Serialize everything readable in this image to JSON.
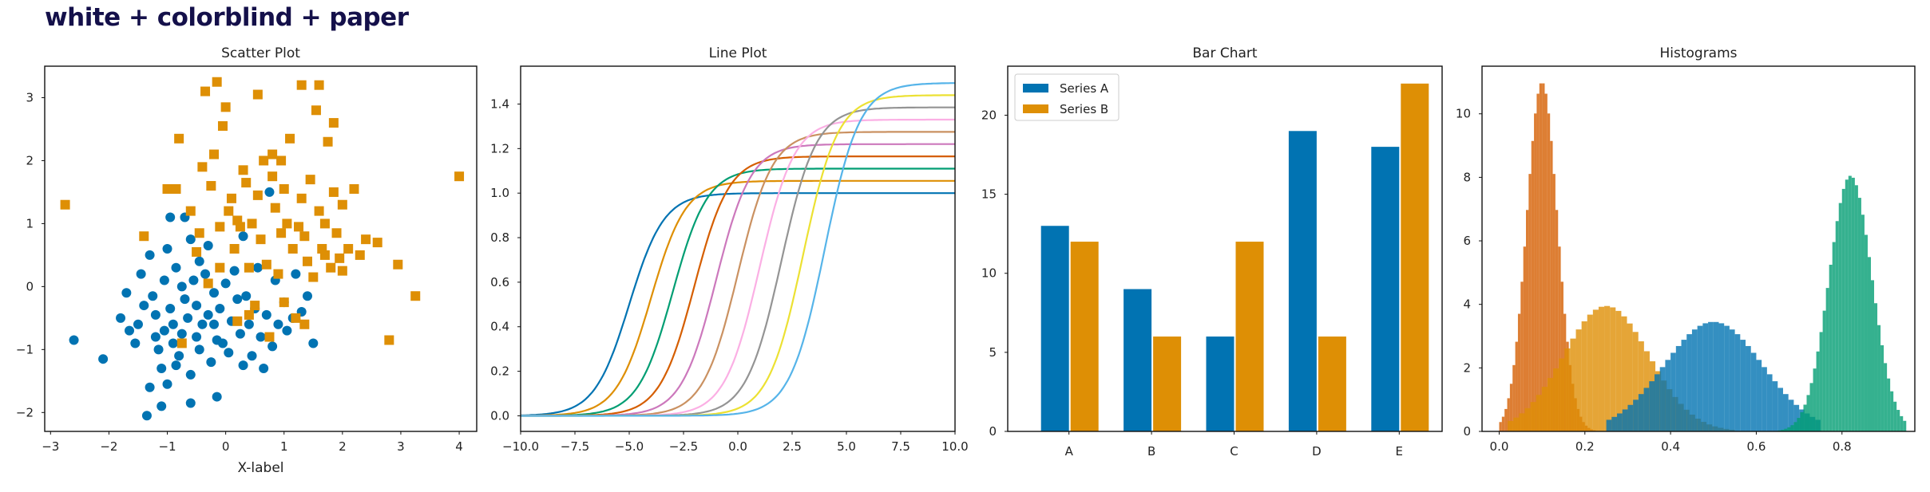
{
  "figure_title": "white + colorblind + paper",
  "colors": {
    "blue": "#0173b2",
    "orange": "#de8f05",
    "green": "#029e73",
    "red": "#d55e00",
    "purple": "#cc78bc",
    "brown": "#ca9161",
    "pink": "#fbafe4",
    "gray": "#949494",
    "yellow": "#ece133",
    "cyan": "#56b4e9"
  },
  "chart_data": [
    {
      "type": "scatter",
      "title": "Scatter Plot",
      "xlabel": "X-label",
      "ylabel": "",
      "xlim": [
        -3.1,
        4.3
      ],
      "ylim": [
        -2.3,
        3.5
      ],
      "xticks": [
        "−3",
        "−2",
        "−1",
        "0",
        "1",
        "2",
        "3",
        "4"
      ],
      "yticks": [
        "−2",
        "−1",
        "0",
        "1",
        "2",
        "3"
      ],
      "grid": false,
      "series": [
        {
          "marker": "circle",
          "color": "#0173b2",
          "points": [
            [
              -2.6,
              -0.85
            ],
            [
              -2.1,
              -1.15
            ],
            [
              -1.8,
              -0.5
            ],
            [
              -1.7,
              -0.1
            ],
            [
              -1.65,
              -0.7
            ],
            [
              -1.55,
              -0.9
            ],
            [
              -1.5,
              -0.6
            ],
            [
              -1.45,
              0.2
            ],
            [
              -1.4,
              -0.3
            ],
            [
              -1.35,
              -2.05
            ],
            [
              -1.3,
              0.5
            ],
            [
              -1.25,
              -0.15
            ],
            [
              -1.2,
              -0.45
            ],
            [
              -1.2,
              -0.8
            ],
            [
              -1.15,
              -1.0
            ],
            [
              -1.1,
              -1.3
            ],
            [
              -1.05,
              0.1
            ],
            [
              -1.05,
              -0.7
            ],
            [
              -1.0,
              -1.55
            ],
            [
              -1.0,
              0.6
            ],
            [
              -0.95,
              -0.35
            ],
            [
              -0.9,
              -0.6
            ],
            [
              -0.9,
              -0.9
            ],
            [
              -0.85,
              0.3
            ],
            [
              -0.85,
              -1.25
            ],
            [
              -0.8,
              -1.1
            ],
            [
              -0.75,
              -0.75
            ],
            [
              -0.75,
              0.0
            ],
            [
              -0.7,
              -0.2
            ],
            [
              -0.7,
              1.1
            ],
            [
              -0.65,
              -0.5
            ],
            [
              -0.6,
              0.75
            ],
            [
              -0.6,
              -1.4
            ],
            [
              -0.55,
              0.1
            ],
            [
              -0.5,
              -0.3
            ],
            [
              -0.5,
              -0.8
            ],
            [
              -0.45,
              0.4
            ],
            [
              -0.45,
              -1.0
            ],
            [
              -0.4,
              -0.6
            ],
            [
              -0.35,
              0.2
            ],
            [
              -0.3,
              -0.45
            ],
            [
              -0.3,
              0.65
            ],
            [
              -0.25,
              -1.2
            ],
            [
              -0.2,
              -0.1
            ],
            [
              -0.15,
              -0.85
            ],
            [
              -0.15,
              -1.75
            ],
            [
              -0.1,
              -0.35
            ],
            [
              -0.05,
              -0.9
            ],
            [
              0.0,
              0.05
            ],
            [
              0.05,
              -1.05
            ],
            [
              0.1,
              -0.55
            ],
            [
              0.15,
              0.25
            ],
            [
              0.2,
              -0.2
            ],
            [
              0.25,
              -0.75
            ],
            [
              0.3,
              0.8
            ],
            [
              0.3,
              -1.25
            ],
            [
              0.35,
              -0.15
            ],
            [
              0.4,
              -0.6
            ],
            [
              0.45,
              -1.1
            ],
            [
              0.5,
              -0.35
            ],
            [
              0.55,
              0.3
            ],
            [
              0.6,
              -0.8
            ],
            [
              0.65,
              -1.3
            ],
            [
              0.7,
              -0.45
            ],
            [
              0.75,
              1.5
            ],
            [
              0.8,
              -0.95
            ],
            [
              0.85,
              0.1
            ],
            [
              0.9,
              -0.6
            ],
            [
              1.0,
              -0.25
            ],
            [
              1.05,
              -0.7
            ],
            [
              1.15,
              -0.5
            ],
            [
              1.2,
              0.2
            ],
            [
              1.3,
              -0.4
            ],
            [
              1.4,
              -0.15
            ],
            [
              1.5,
              -0.9
            ],
            [
              -1.1,
              -1.9
            ],
            [
              -0.6,
              -1.85
            ],
            [
              -1.3,
              -1.6
            ],
            [
              -0.95,
              1.1
            ],
            [
              -0.2,
              -0.6
            ]
          ]
        },
        {
          "marker": "square",
          "color": "#de8f05",
          "points": [
            [
              -2.75,
              1.3
            ],
            [
              -1.4,
              0.8
            ],
            [
              -1.0,
              1.55
            ],
            [
              -0.85,
              1.55
            ],
            [
              -0.8,
              2.35
            ],
            [
              -0.75,
              -0.9
            ],
            [
              -0.6,
              1.2
            ],
            [
              -0.5,
              0.55
            ],
            [
              -0.45,
              0.85
            ],
            [
              -0.4,
              1.9
            ],
            [
              -0.35,
              3.1
            ],
            [
              -0.3,
              0.05
            ],
            [
              -0.25,
              1.6
            ],
            [
              -0.2,
              2.1
            ],
            [
              -0.15,
              3.25
            ],
            [
              -0.1,
              0.3
            ],
            [
              -0.05,
              2.55
            ],
            [
              0.0,
              2.85
            ],
            [
              0.05,
              1.2
            ],
            [
              0.1,
              1.4
            ],
            [
              0.15,
              0.6
            ],
            [
              0.2,
              -0.55
            ],
            [
              0.25,
              0.95
            ],
            [
              0.3,
              1.85
            ],
            [
              0.35,
              1.65
            ],
            [
              0.4,
              0.3
            ],
            [
              0.45,
              1.0
            ],
            [
              0.5,
              -0.3
            ],
            [
              0.55,
              1.45
            ],
            [
              0.6,
              0.75
            ],
            [
              0.65,
              2.0
            ],
            [
              0.7,
              0.35
            ],
            [
              0.75,
              -0.8
            ],
            [
              0.8,
              2.1
            ],
            [
              0.85,
              1.25
            ],
            [
              0.9,
              0.2
            ],
            [
              0.95,
              0.85
            ],
            [
              1.0,
              1.55
            ],
            [
              1.05,
              1.0
            ],
            [
              1.1,
              2.35
            ],
            [
              1.15,
              0.6
            ],
            [
              1.2,
              -0.5
            ],
            [
              1.25,
              0.95
            ],
            [
              1.3,
              1.4
            ],
            [
              1.35,
              -0.6
            ],
            [
              1.4,
              0.4
            ],
            [
              1.45,
              1.7
            ],
            [
              1.5,
              0.15
            ],
            [
              1.55,
              2.8
            ],
            [
              1.6,
              3.2
            ],
            [
              1.65,
              0.6
            ],
            [
              1.7,
              1.0
            ],
            [
              1.75,
              2.3
            ],
            [
              1.8,
              0.3
            ],
            [
              1.85,
              1.5
            ],
            [
              1.9,
              0.85
            ],
            [
              1.95,
              0.45
            ],
            [
              2.0,
              1.3
            ],
            [
              2.1,
              0.6
            ],
            [
              2.2,
              1.55
            ],
            [
              2.4,
              0.75
            ],
            [
              2.6,
              0.7
            ],
            [
              2.8,
              -0.85
            ],
            [
              2.95,
              0.35
            ],
            [
              3.25,
              -0.15
            ],
            [
              4.0,
              1.75
            ],
            [
              1.3,
              3.2
            ],
            [
              0.55,
              3.05
            ],
            [
              0.95,
              2.0
            ],
            [
              1.6,
              1.2
            ],
            [
              1.7,
              0.5
            ],
            [
              -0.1,
              0.95
            ],
            [
              2.3,
              0.5
            ],
            [
              0.8,
              1.75
            ],
            [
              1.35,
              0.8
            ],
            [
              0.2,
              1.05
            ],
            [
              1.85,
              2.6
            ],
            [
              2.0,
              0.25
            ],
            [
              1.0,
              -0.25
            ],
            [
              0.4,
              -0.45
            ]
          ]
        }
      ]
    },
    {
      "type": "line",
      "title": "Line Plot",
      "xlabel": "",
      "ylabel": "",
      "xlim": [
        -10,
        10
      ],
      "ylim": [
        -0.07,
        1.57
      ],
      "xticks": [
        "−10.0",
        "−7.5",
        "−5.0",
        "−2.5",
        "0.0",
        "2.5",
        "5.0",
        "7.5",
        "10.0"
      ],
      "yticks": [
        "0.0",
        "0.2",
        "0.4",
        "0.6",
        "0.8",
        "1.0",
        "1.2",
        "1.4"
      ],
      "grid": false,
      "series": [
        {
          "shift": -5.0,
          "amplitude": 1.0,
          "color": "#0173b2"
        },
        {
          "shift": -4.0,
          "amplitude": 1.055,
          "color": "#de8f05"
        },
        {
          "shift": -3.0,
          "amplitude": 1.11,
          "color": "#029e73"
        },
        {
          "shift": -2.0,
          "amplitude": 1.165,
          "color": "#d55e00"
        },
        {
          "shift": -1.0,
          "amplitude": 1.22,
          "color": "#cc78bc"
        },
        {
          "shift": 0.0,
          "amplitude": 1.275,
          "color": "#ca9161"
        },
        {
          "shift": 1.0,
          "amplitude": 1.33,
          "color": "#fbafe4"
        },
        {
          "shift": 2.0,
          "amplitude": 1.385,
          "color": "#949494"
        },
        {
          "shift": 3.0,
          "amplitude": 1.44,
          "color": "#ece133"
        },
        {
          "shift": 4.0,
          "amplitude": 1.495,
          "color": "#56b4e9"
        }
      ]
    },
    {
      "type": "bar",
      "title": "Bar Chart",
      "xlabel": "",
      "ylabel": "",
      "ylim": [
        0,
        23.1
      ],
      "categories": [
        "A",
        "B",
        "C",
        "D",
        "E"
      ],
      "yticks": [
        "0",
        "5",
        "10",
        "15",
        "20"
      ],
      "legend_position": "top-left",
      "series": [
        {
          "name": "Series A",
          "color": "#0173b2",
          "values": [
            13,
            9,
            6,
            19,
            18
          ]
        },
        {
          "name": "Series B",
          "color": "#de8f05",
          "values": [
            12,
            6,
            12,
            6,
            22
          ]
        }
      ]
    },
    {
      "type": "histogram",
      "title": "Histograms",
      "xlabel": "",
      "ylabel": "",
      "xlim": [
        -0.04,
        0.97
      ],
      "ylim": [
        0,
        11.5
      ],
      "xticks": [
        "0.0",
        "0.2",
        "0.4",
        "0.6",
        "0.8"
      ],
      "yticks": [
        "0",
        "2",
        "4",
        "6",
        "8",
        "10"
      ],
      "series": [
        {
          "color": "#d55e00",
          "mean": 0.1,
          "sd": 0.036,
          "peak": 11.0,
          "range": [
            0.0,
            0.25
          ]
        },
        {
          "color": "#de8f05",
          "mean": 0.25,
          "sd": 0.1,
          "peak": 3.95,
          "range": [
            0.02,
            0.55
          ]
        },
        {
          "color": "#0173b2",
          "mean": 0.5,
          "sd": 0.115,
          "peak": 3.45,
          "range": [
            0.25,
            0.75
          ]
        },
        {
          "color": "#029e73",
          "mean": 0.82,
          "sd": 0.05,
          "peak": 8.05,
          "range": [
            0.65,
            0.95
          ]
        }
      ]
    }
  ]
}
